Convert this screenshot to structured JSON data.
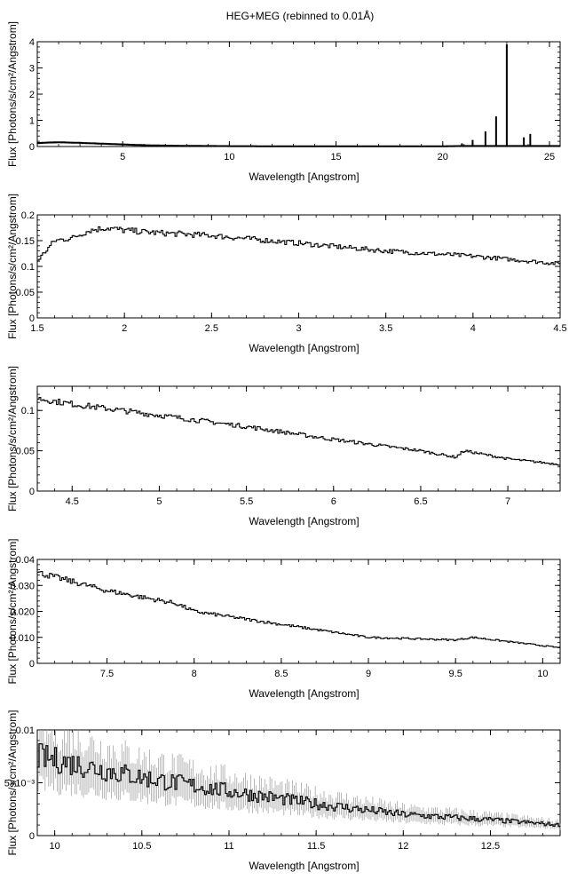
{
  "figure": {
    "title": "HEG+MEG (rebinned to 0.01Å)"
  },
  "colors": {
    "line": "#000000",
    "error": "#999999",
    "background": "#ffffff"
  },
  "chart_data": [
    {
      "type": "line",
      "title": "HEG+MEG (rebinned to 0.01Å)",
      "xlabel": "Wavelength [Angstrom]",
      "ylabel": "Flux [Photons/s/cm²/Angstrom]",
      "xlim": [
        1.0,
        25.5
      ],
      "ylim": [
        0,
        4
      ],
      "xticks": [
        5,
        10,
        15,
        20,
        25
      ],
      "xtick_labels": [
        "5",
        "10",
        "15",
        "20",
        "25"
      ],
      "yticks": [
        0,
        1,
        2,
        3,
        4
      ],
      "ytick_labels": [
        "0",
        "1",
        "2",
        "3",
        "4"
      ],
      "grid": false,
      "series": [
        {
          "x": [
            1.0,
            1.5,
            2.0,
            3.0,
            4.0,
            5.0,
            6.0,
            7.0,
            8.0,
            10.0,
            12.0,
            15.0,
            18.0,
            20.0,
            21.0,
            21.6,
            22.1,
            22.5,
            23.0,
            23.5,
            24.0,
            24.3,
            25.0,
            25.5
          ],
          "values": [
            0.13,
            0.15,
            0.16,
            0.14,
            0.11,
            0.08,
            0.05,
            0.035,
            0.025,
            0.015,
            0.01,
            0.008,
            0.008,
            0.01,
            0.02,
            0.02,
            0.02,
            0.02,
            0.02,
            0.02,
            0.02,
            0.02,
            0.02,
            0.02
          ]
        }
      ],
      "lines": [
        {
          "x": 20.9,
          "value": 0.12
        },
        {
          "x": 21.4,
          "value": 0.25
        },
        {
          "x": 22.0,
          "value": 0.58
        },
        {
          "x": 22.5,
          "value": 1.15
        },
        {
          "x": 23.0,
          "value": 3.9
        },
        {
          "x": 23.8,
          "value": 0.35
        },
        {
          "x": 24.1,
          "value": 0.48
        }
      ]
    },
    {
      "type": "line",
      "xlabel": "Wavelength [Angstrom]",
      "ylabel": "Flux [Photons/s/cm²/Angstrom]",
      "xlim": [
        1.5,
        4.5
      ],
      "ylim": [
        0,
        0.2
      ],
      "xticks": [
        1.5,
        2,
        2.5,
        3,
        3.5,
        4,
        4.5
      ],
      "xtick_labels": [
        "1.5",
        "2",
        "2.5",
        "3",
        "3.5",
        "4",
        "4.5"
      ],
      "yticks": [
        0,
        0.05,
        0.1,
        0.15,
        0.2
      ],
      "ytick_labels": [
        "0",
        "0.05",
        "0.1",
        "0.15",
        "0.2"
      ],
      "grid": false,
      "series": [
        {
          "x": [
            1.5,
            1.55,
            1.6,
            1.7,
            1.8,
            1.9,
            2.0,
            2.2,
            2.5,
            3.0,
            3.5,
            4.0,
            4.5
          ],
          "values": [
            0.11,
            0.13,
            0.15,
            0.155,
            0.17,
            0.175,
            0.17,
            0.165,
            0.16,
            0.145,
            0.13,
            0.12,
            0.105
          ]
        }
      ]
    },
    {
      "type": "line",
      "xlabel": "Wavelength [Angstrom]",
      "ylabel": "Flux [Photons/s/cm²/Angstrom]",
      "xlim": [
        4.3,
        7.3
      ],
      "ylim": [
        0,
        0.13
      ],
      "xticks": [
        4.5,
        5,
        5.5,
        6,
        6.5,
        7
      ],
      "xtick_labels": [
        "4.5",
        "5",
        "5.5",
        "6",
        "6.5",
        "7"
      ],
      "yticks": [
        0,
        0.05,
        0.1
      ],
      "ytick_labels": [
        "0",
        "0.05",
        "0.1"
      ],
      "grid": false,
      "series": [
        {
          "x": [
            4.3,
            4.5,
            5.0,
            5.5,
            6.0,
            6.5,
            6.7,
            6.75,
            7.0,
            7.3
          ],
          "values": [
            0.115,
            0.108,
            0.094,
            0.08,
            0.064,
            0.05,
            0.042,
            0.05,
            0.04,
            0.033
          ]
        }
      ]
    },
    {
      "type": "line",
      "xlabel": "Wavelength [Angstrom]",
      "ylabel": "Flux [Photons/s/cm²/Angstrom]",
      "xlim": [
        7.1,
        10.1
      ],
      "ylim": [
        0,
        0.04
      ],
      "xticks": [
        7.5,
        8,
        8.5,
        9,
        9.5,
        10
      ],
      "xtick_labels": [
        "7.5",
        "8",
        "8.5",
        "9",
        "9.5",
        "10"
      ],
      "yticks": [
        0,
        0.01,
        0.02,
        0.03,
        0.04
      ],
      "ytick_labels": [
        "0",
        "0.010",
        "0.020",
        "0.030",
        "0.04"
      ],
      "grid": false,
      "series": [
        {
          "x": [
            7.1,
            7.5,
            7.9,
            8.0,
            8.5,
            9.0,
            9.5,
            9.6,
            10.1
          ],
          "values": [
            0.035,
            0.028,
            0.023,
            0.02,
            0.015,
            0.01,
            0.009,
            0.01,
            0.006
          ]
        }
      ]
    },
    {
      "type": "line",
      "xlabel": "Wavelength [Angstrom]",
      "ylabel": "Flux [Photons/s/cm²/Angstrom]",
      "xlim": [
        9.9,
        12.9
      ],
      "ylim": [
        0,
        0.01
      ],
      "xticks": [
        10,
        10.5,
        11,
        11.5,
        12,
        12.5
      ],
      "xtick_labels": [
        "10",
        "10.5",
        "11",
        "11.5",
        "12",
        "12.5"
      ],
      "yticks": [
        0,
        0.005,
        0.01
      ],
      "ytick_labels": [
        "0",
        "5×10⁻³",
        "0.01"
      ],
      "grid": false,
      "error_bars": true,
      "series": [
        {
          "x": [
            9.9,
            10.2,
            10.5,
            11.0,
            11.5,
            12.0,
            12.5,
            12.9
          ],
          "values": [
            0.0075,
            0.0065,
            0.0055,
            0.0042,
            0.003,
            0.002,
            0.0015,
            0.001
          ]
        }
      ]
    }
  ]
}
